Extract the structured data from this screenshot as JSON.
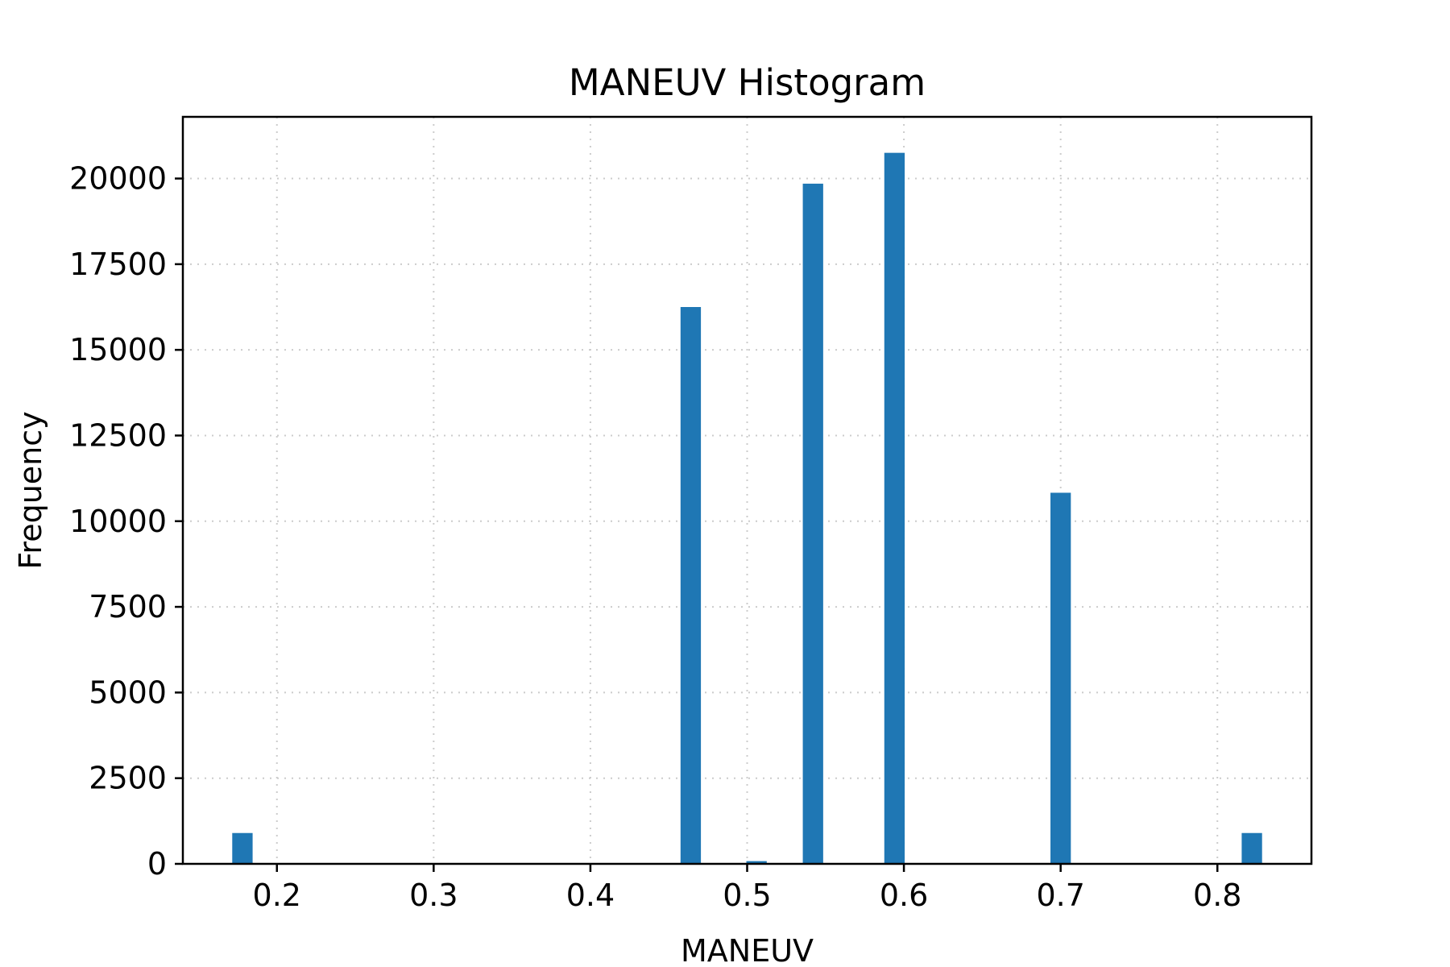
{
  "chart_data": {
    "type": "bar",
    "title": "MANEUV Histogram",
    "xlabel": "MANEUV",
    "ylabel": "Frequency",
    "xlim": [
      0.14,
      0.86
    ],
    "ylim": [
      0,
      21800
    ],
    "grid": true,
    "color": "#1f77b4",
    "bin_width": 0.013,
    "x_ticks": [
      0.2,
      0.3,
      0.4,
      0.5,
      0.6,
      0.7,
      0.8
    ],
    "x_tick_labels": [
      "0.2",
      "0.3",
      "0.4",
      "0.5",
      "0.6",
      "0.7",
      "0.8"
    ],
    "y_ticks": [
      0,
      2500,
      5000,
      7500,
      10000,
      12500,
      15000,
      17500,
      20000
    ],
    "y_tick_labels": [
      "0",
      "2500",
      "5000",
      "7500",
      "10000",
      "12500",
      "15000",
      "17500",
      "20000"
    ],
    "bins": [
      {
        "x": 0.178,
        "value": 900
      },
      {
        "x": 0.464,
        "value": 16250
      },
      {
        "x": 0.506,
        "value": 80
      },
      {
        "x": 0.542,
        "value": 19850
      },
      {
        "x": 0.594,
        "value": 20750
      },
      {
        "x": 0.7,
        "value": 10830
      },
      {
        "x": 0.822,
        "value": 900
      }
    ]
  }
}
